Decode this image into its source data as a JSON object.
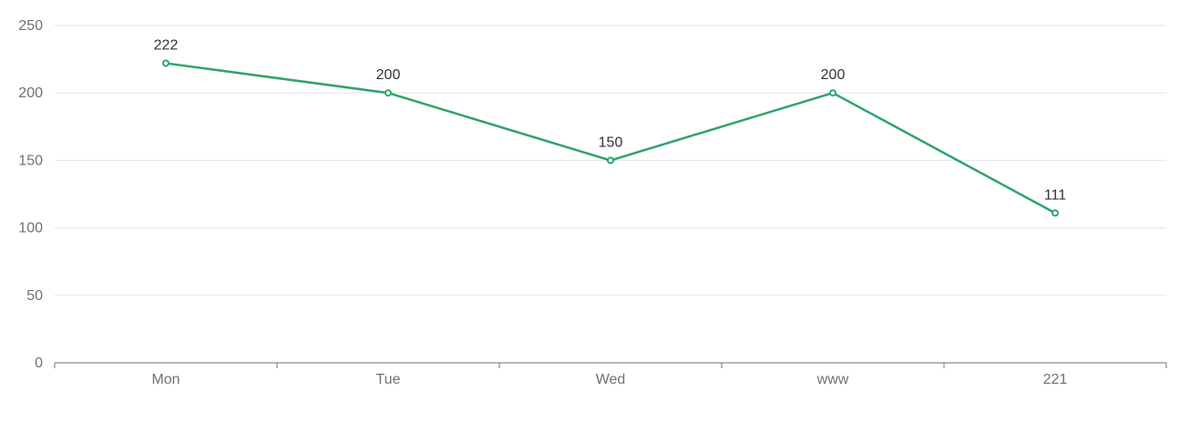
{
  "chart_data": {
    "type": "line",
    "categories": [
      "Mon",
      "Tue",
      "Wed",
      "www",
      "221"
    ],
    "series": [
      {
        "values": [
          222,
          200,
          150,
          200,
          111
        ]
      }
    ],
    "ylim": [
      0,
      250
    ],
    "yticks": [
      "0",
      "50",
      "100",
      "150",
      "200",
      "250"
    ],
    "data_labels": [
      "222",
      "200",
      "150",
      "200",
      "111"
    ],
    "grid": true,
    "colors": {
      "series": "#2fa46b",
      "axis": "#6e7079",
      "grid": "#e0e6f1",
      "label": "#333333"
    }
  }
}
